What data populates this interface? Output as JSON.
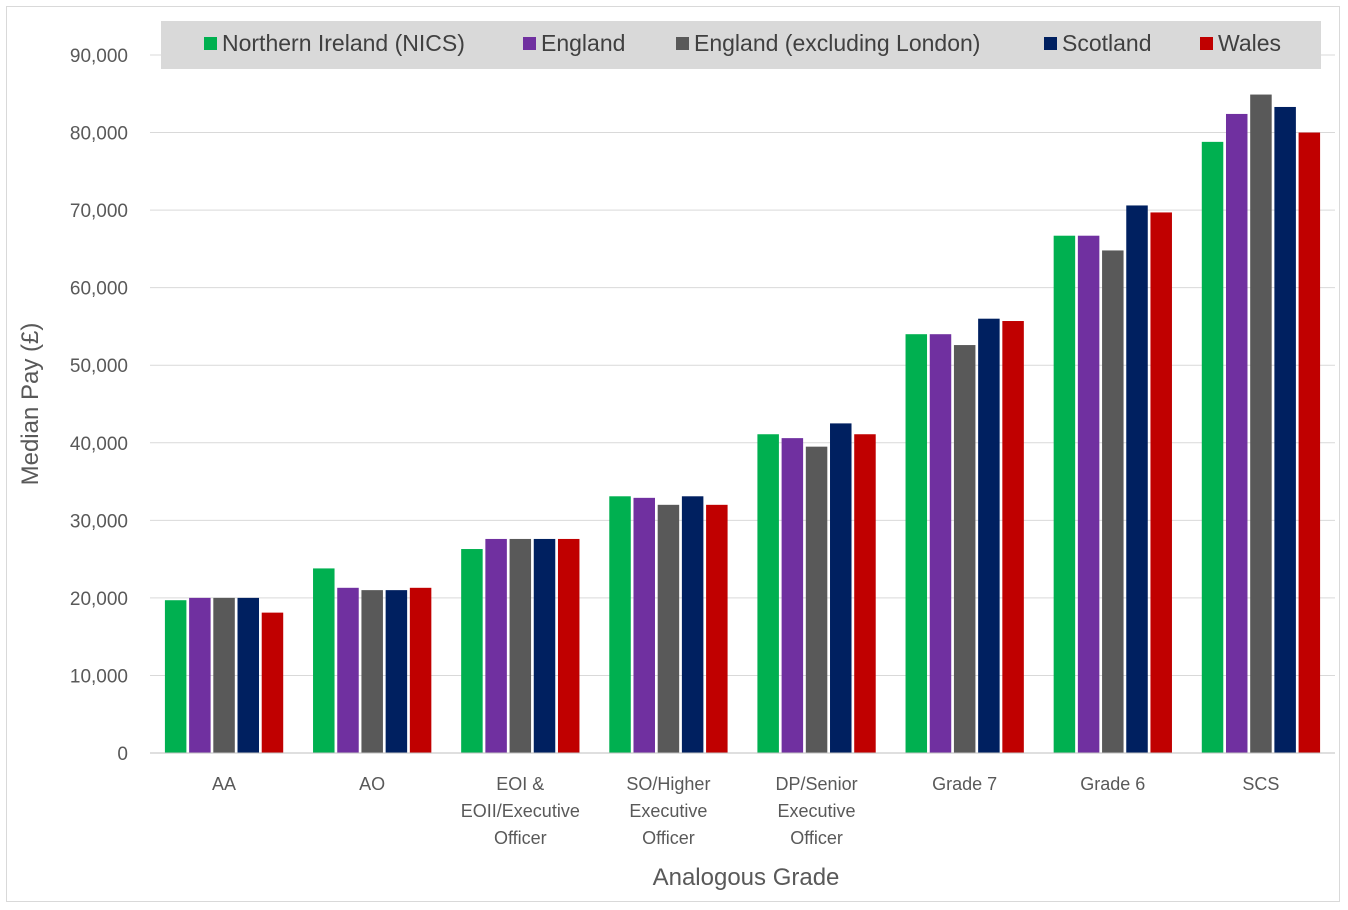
{
  "chart_data": {
    "type": "bar",
    "title": "",
    "xlabel": "Analogous Grade",
    "ylabel": "Median Pay (£)",
    "ylim": [
      0,
      90000
    ],
    "yticks": [
      0,
      10000,
      20000,
      30000,
      40000,
      50000,
      60000,
      70000,
      80000,
      90000
    ],
    "ytick_labels": [
      "0",
      "10,000",
      "20,000",
      "30,000",
      "40,000",
      "50,000",
      "60,000",
      "70,000",
      "80,000",
      "90,000"
    ],
    "grid": true,
    "legend_position": "top",
    "categories": [
      [
        "AA"
      ],
      [
        "AO"
      ],
      [
        "EOI &",
        "EOII/Executive",
        "Officer"
      ],
      [
        "SO/Higher",
        "Executive",
        "Officer"
      ],
      [
        "DP/Senior",
        "Executive",
        "Officer"
      ],
      [
        "Grade 7"
      ],
      [
        "Grade 6"
      ],
      [
        "SCS"
      ]
    ],
    "series": [
      {
        "name": "Northern Ireland (NICS)",
        "color": "#00b050",
        "values": [
          19700,
          23800,
          26300,
          33100,
          41100,
          54000,
          66700,
          78800
        ]
      },
      {
        "name": "England",
        "color": "#7030a0",
        "values": [
          20000,
          21300,
          27600,
          32900,
          40600,
          54000,
          66700,
          82400
        ]
      },
      {
        "name": "England (excluding London)",
        "color": "#595959",
        "values": [
          20000,
          21000,
          27600,
          32000,
          39500,
          52600,
          64800,
          84900
        ]
      },
      {
        "name": "Scotland",
        "color": "#002060",
        "values": [
          20000,
          21000,
          27600,
          33100,
          42500,
          56000,
          70600,
          83300
        ]
      },
      {
        "name": "Wales",
        "color": "#c00000",
        "values": [
          18100,
          21300,
          27600,
          32000,
          41100,
          55700,
          69700,
          80000
        ]
      }
    ]
  }
}
